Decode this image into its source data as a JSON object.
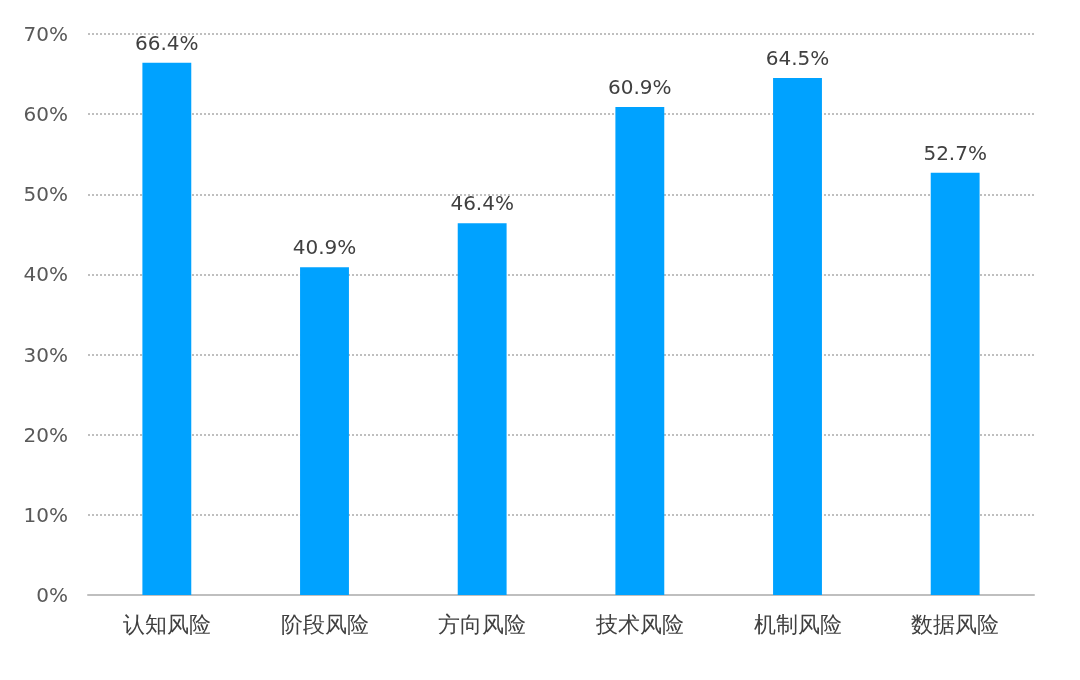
{
  "chart_data": {
    "type": "bar",
    "categories": [
      "认知风险",
      "阶段风险",
      "方向风险",
      "技术风险",
      "机制风险",
      "数据风险"
    ],
    "values": [
      66.4,
      40.9,
      46.4,
      60.9,
      64.5,
      52.7
    ],
    "value_labels": [
      "66.4%",
      "40.9%",
      "46.4%",
      "60.9%",
      "64.5%",
      "52.7%"
    ],
    "color": "#00a2ff",
    "ylim": [
      0,
      70
    ],
    "yticks": [
      {
        "value": 0,
        "label": "0%"
      },
      {
        "value": 10,
        "label": "10%"
      },
      {
        "value": 20,
        "label": "20%"
      },
      {
        "value": 30,
        "label": "30%"
      },
      {
        "value": 40,
        "label": "40%"
      },
      {
        "value": 50,
        "label": "50%"
      },
      {
        "value": 60,
        "label": "60%"
      },
      {
        "value": 70,
        "label": "70%"
      }
    ],
    "grid": "y"
  }
}
